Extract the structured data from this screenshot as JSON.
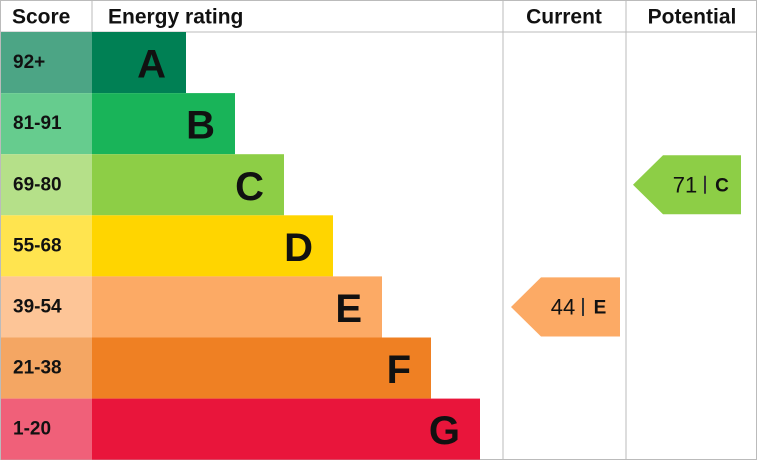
{
  "headers": [
    "Score",
    "Energy rating",
    "Current",
    "Potential"
  ],
  "bands": [
    {
      "score": "92+",
      "letter": "A",
      "color": "#008054",
      "light": "#4ca585"
    },
    {
      "score": "81-91",
      "letter": "B",
      "color": "#19b459",
      "light": "#66cc8e"
    },
    {
      "score": "69-80",
      "letter": "C",
      "color": "#8dce46",
      "light": "#b5e089"
    },
    {
      "score": "55-68",
      "letter": "D",
      "color": "#ffd500",
      "light": "#ffe44f"
    },
    {
      "score": "39-54",
      "letter": "E",
      "color": "#fcaa65",
      "light": "#fdc597"
    },
    {
      "score": "21-38",
      "letter": "F",
      "color": "#ef8023",
      "light": "#f4a663"
    },
    {
      "score": "1-20",
      "letter": "G",
      "color": "#e9153b",
      "light": "#f06079"
    }
  ],
  "current": {
    "value": 44,
    "letter": "E",
    "color": "#fcaa65"
  },
  "potential": {
    "value": 71,
    "letter": "C",
    "color": "#8dce46"
  }
}
